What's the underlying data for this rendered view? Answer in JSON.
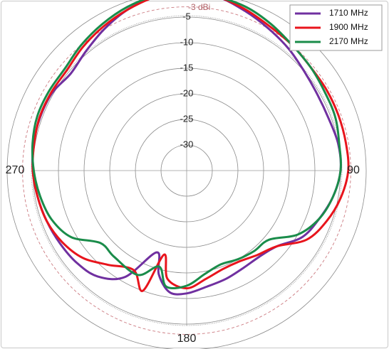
{
  "chart_data": {
    "type": "line",
    "subtype": "polar",
    "title": "",
    "r_ticks": [
      "0",
      "-5",
      "-10",
      "-15",
      "-20",
      "-25",
      "-30"
    ],
    "r_range": [
      -30,
      0
    ],
    "reference": {
      "value": -3,
      "label": "-3 dBi",
      "color": "#cc7a80"
    },
    "angle_labels": {
      "0": "",
      "90": "90",
      "180": "180",
      "270": "270"
    },
    "legend_position": "top-right",
    "grid": true,
    "series": [
      {
        "name": "1710 MHz",
        "color": "#7030a0",
        "points": [
          [
            0,
            0
          ],
          [
            10,
            -0.5
          ],
          [
            20,
            -1.8
          ],
          [
            30,
            -3
          ],
          [
            40,
            -4
          ],
          [
            50,
            -5
          ],
          [
            60,
            -5.5
          ],
          [
            70,
            -5.5
          ],
          [
            80,
            -5
          ],
          [
            90,
            -5
          ],
          [
            100,
            -6
          ],
          [
            110,
            -7.5
          ],
          [
            120,
            -9
          ],
          [
            130,
            -12
          ],
          [
            140,
            -13
          ],
          [
            150,
            -13
          ],
          [
            160,
            -12.5
          ],
          [
            170,
            -12
          ],
          [
            180,
            -11
          ],
          [
            188,
            -11
          ],
          [
            195,
            -14
          ],
          [
            200,
            -18
          ],
          [
            210,
            -11
          ],
          [
            220,
            -8
          ],
          [
            230,
            -7
          ],
          [
            240,
            -6.5
          ],
          [
            250,
            -6
          ],
          [
            260,
            -5.5
          ],
          [
            270,
            -5
          ],
          [
            280,
            -4.7
          ],
          [
            290,
            -4.6
          ],
          [
            300,
            -4.7
          ],
          [
            310,
            -5.5
          ],
          [
            320,
            -4.5
          ],
          [
            330,
            -3
          ],
          [
            340,
            -1.5
          ],
          [
            350,
            -0.5
          ]
        ]
      },
      {
        "name": "1900 MHz",
        "color": "#e8141c",
        "points": [
          [
            0,
            0
          ],
          [
            10,
            -0.5
          ],
          [
            20,
            -1.5
          ],
          [
            30,
            -2.5
          ],
          [
            40,
            -3
          ],
          [
            50,
            -3.5
          ],
          [
            60,
            -3.5
          ],
          [
            70,
            -3.5
          ],
          [
            80,
            -3.5
          ],
          [
            90,
            -3.5
          ],
          [
            100,
            -4.5
          ],
          [
            110,
            -6
          ],
          [
            120,
            -8
          ],
          [
            130,
            -12
          ],
          [
            140,
            -13.5
          ],
          [
            150,
            -14.5
          ],
          [
            160,
            -14.5
          ],
          [
            170,
            -13.5
          ],
          [
            180,
            -12
          ],
          [
            190,
            -13.5
          ],
          [
            195,
            -18
          ],
          [
            200,
            -10
          ],
          [
            208,
            -13
          ],
          [
            220,
            -11
          ],
          [
            230,
            -8.5
          ],
          [
            240,
            -7
          ],
          [
            250,
            -6
          ],
          [
            260,
            -5.5
          ],
          [
            270,
            -5
          ],
          [
            280,
            -4.8
          ],
          [
            290,
            -4.5
          ],
          [
            300,
            -4.5
          ],
          [
            310,
            -4.5
          ],
          [
            320,
            -3.5
          ],
          [
            330,
            -2.5
          ],
          [
            340,
            -1.5
          ],
          [
            350,
            -0.5
          ]
        ]
      },
      {
        "name": "2170 MHz",
        "color": "#1a8c4a",
        "points": [
          [
            0,
            0
          ],
          [
            10,
            -0.5
          ],
          [
            20,
            -1
          ],
          [
            30,
            -2
          ],
          [
            40,
            -3
          ],
          [
            50,
            -3.5
          ],
          [
            60,
            -4
          ],
          [
            70,
            -4.2
          ],
          [
            80,
            -4.8
          ],
          [
            90,
            -5
          ],
          [
            100,
            -6
          ],
          [
            110,
            -7.5
          ],
          [
            120,
            -10
          ],
          [
            130,
            -14
          ],
          [
            140,
            -14.5
          ],
          [
            150,
            -15
          ],
          [
            160,
            -15.5
          ],
          [
            170,
            -14.5
          ],
          [
            180,
            -12.5
          ],
          [
            190,
            -12
          ],
          [
            196,
            -15.5
          ],
          [
            205,
            -12.5
          ],
          [
            220,
            -13
          ],
          [
            230,
            -13
          ],
          [
            240,
            -9
          ],
          [
            250,
            -7
          ],
          [
            260,
            -6
          ],
          [
            270,
            -5.2
          ],
          [
            280,
            -4.5
          ],
          [
            290,
            -4
          ],
          [
            300,
            -4
          ],
          [
            310,
            -4
          ],
          [
            320,
            -3
          ],
          [
            330,
            -2
          ],
          [
            340,
            -1
          ],
          [
            350,
            -0.3
          ]
        ]
      }
    ]
  }
}
